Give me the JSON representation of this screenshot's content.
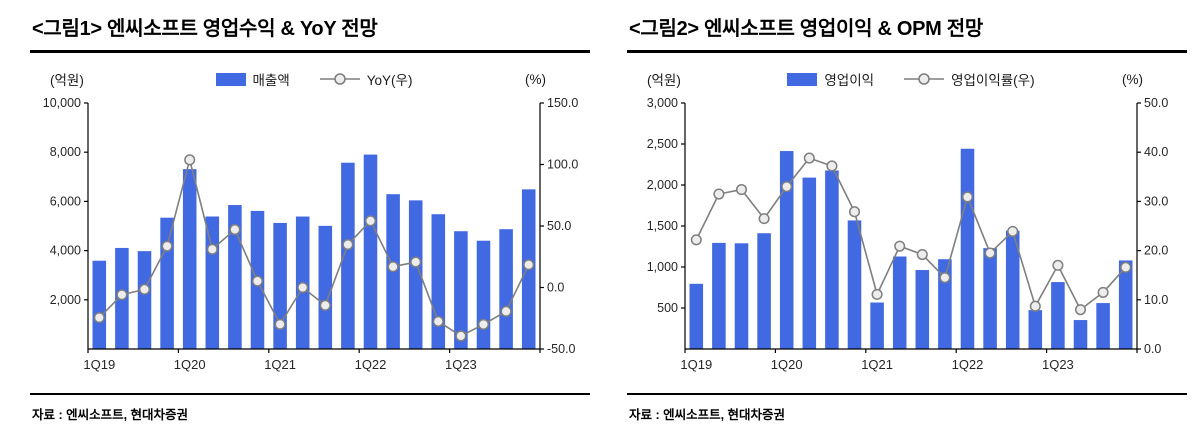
{
  "colors": {
    "bar": "#4169E1",
    "line": "#7F7F7F",
    "marker_fill": "#EDEDED",
    "axis": "#000000",
    "text": "#262626"
  },
  "panels": [
    {
      "title": "<그림1> 엔씨소프트 영업수익 & YoY 전망",
      "unit_left": "(억원)",
      "unit_right": "(%)",
      "legend": {
        "bar_label": "매출액",
        "line_label": "YoY(우)"
      },
      "source": "자료 : 엔씨소프트, 현대차증권"
    },
    {
      "title": "<그림2> 엔씨소프트 영업이익 & OPM 전망",
      "unit_left": "(억원)",
      "unit_right": "(%)",
      "legend": {
        "bar_label": "영업이익",
        "line_label": "영업이익률(우)"
      },
      "source": "자료 : 엔씨소프트, 현대차증권"
    }
  ],
  "chart_data": [
    {
      "type": "bar",
      "title": "엔씨소프트 영업수익 & YoY 전망",
      "categories": [
        "1Q19",
        "2Q19",
        "3Q19",
        "4Q19",
        "1Q20",
        "2Q20",
        "3Q20",
        "4Q20",
        "1Q21",
        "2Q21",
        "3Q21",
        "4Q21",
        "1Q22",
        "2Q22",
        "3Q22",
        "4Q22",
        "1Q23",
        "2Q23",
        "3Q23",
        "4Q23"
      ],
      "x_tick_labels": [
        "1Q19",
        "1Q20",
        "1Q21",
        "1Q22",
        "1Q23"
      ],
      "series": [
        {
          "name": "매출액",
          "type": "bar",
          "axis": "left",
          "values": [
            3588,
            4108,
            3978,
            5338,
            7311,
            5386,
            5852,
            5613,
            5125,
            5385,
            5006,
            7572,
            7903,
            6293,
            6042,
            5479,
            4788,
            4402,
            4870,
            6490
          ]
        },
        {
          "name": "YoY(우)",
          "type": "line",
          "axis": "right",
          "values": [
            -24.5,
            -5.9,
            -1.5,
            33.6,
            103.8,
            31.1,
            47.1,
            5.2,
            -29.9,
            0.0,
            -14.5,
            34.9,
            54.2,
            16.9,
            20.7,
            -27.6,
            -39.4,
            -30.0,
            -19.4,
            18.5
          ]
        }
      ],
      "left_axis": {
        "min": 0,
        "max": 10000,
        "ticks": [
          {
            "label": "10,000",
            "value": 10000
          },
          {
            "label": "8,000",
            "value": 8000
          },
          {
            "label": "6,000",
            "value": 6000
          },
          {
            "label": "4,000",
            "value": 4000
          },
          {
            "label": "2,000",
            "value": 2000
          }
        ]
      },
      "right_axis": {
        "min": -50,
        "max": 150,
        "ticks": [
          {
            "label": "150.0",
            "value": 150
          },
          {
            "label": "100.0",
            "value": 100
          },
          {
            "label": "50.0",
            "value": 50
          },
          {
            "label": "0.0",
            "value": 0
          },
          {
            "label": "-50.0",
            "value": -50
          }
        ]
      },
      "grid": false,
      "legend_position": "top"
    },
    {
      "type": "bar",
      "title": "엔씨소프트 영업이익 & OPM 전망",
      "categories": [
        "1Q19",
        "2Q19",
        "3Q19",
        "4Q19",
        "1Q20",
        "2Q20",
        "3Q20",
        "4Q20",
        "1Q21",
        "2Q21",
        "3Q21",
        "4Q21",
        "1Q22",
        "2Q22",
        "3Q22",
        "4Q22",
        "1Q23",
        "2Q23",
        "3Q23",
        "4Q23"
      ],
      "x_tick_labels": [
        "1Q19",
        "1Q20",
        "1Q21",
        "1Q22",
        "1Q23"
      ],
      "series": [
        {
          "name": "영업이익",
          "type": "bar",
          "axis": "left",
          "values": [
            795,
            1294,
            1289,
            1412,
            2414,
            2090,
            2177,
            1568,
            567,
            1128,
            963,
            1095,
            2442,
            1230,
            1444,
            474,
            816,
            353,
            560,
            1080
          ]
        },
        {
          "name": "영업이익률(우)",
          "type": "line",
          "axis": "right",
          "values": [
            22.2,
            31.5,
            32.4,
            26.5,
            33.0,
            38.8,
            37.2,
            27.9,
            11.1,
            20.9,
            19.2,
            14.5,
            30.9,
            19.5,
            23.9,
            8.7,
            17.0,
            8.0,
            11.5,
            16.6
          ]
        }
      ],
      "left_axis": {
        "min": 0,
        "max": 3000,
        "ticks": [
          {
            "label": "3,000",
            "value": 3000
          },
          {
            "label": "2,500",
            "value": 2500
          },
          {
            "label": "2,000",
            "value": 2000
          },
          {
            "label": "1,500",
            "value": 1500
          },
          {
            "label": "1,000",
            "value": 1000
          },
          {
            "label": "500",
            "value": 500
          }
        ]
      },
      "right_axis": {
        "min": 0,
        "max": 50,
        "ticks": [
          {
            "label": "50.0",
            "value": 50
          },
          {
            "label": "40.0",
            "value": 40
          },
          {
            "label": "30.0",
            "value": 30
          },
          {
            "label": "20.0",
            "value": 20
          },
          {
            "label": "10.0",
            "value": 10
          },
          {
            "label": "0.0",
            "value": 0
          }
        ]
      },
      "grid": false,
      "legend_position": "top"
    }
  ]
}
